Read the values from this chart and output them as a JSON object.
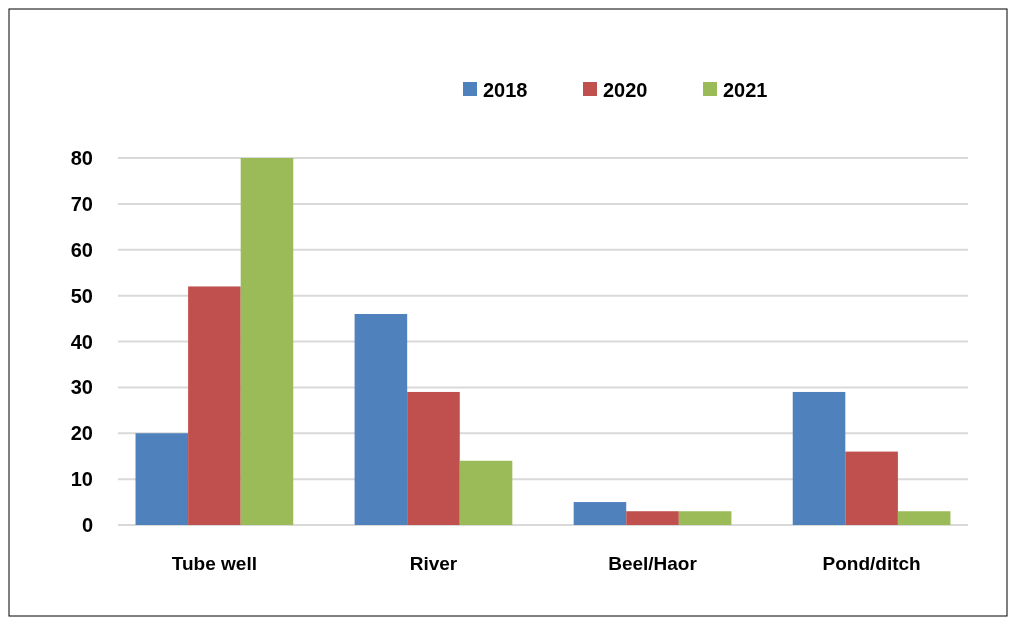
{
  "chart_data": {
    "type": "bar",
    "categories": [
      "Tube well",
      "River",
      "Beel/Haor",
      "Pond/ditch"
    ],
    "series": [
      {
        "name": "2018",
        "color": "#4f81bd",
        "values": [
          20,
          46,
          5,
          29
        ]
      },
      {
        "name": "2020",
        "color": "#c0504d",
        "values": [
          52,
          29,
          3,
          16
        ]
      },
      {
        "name": "2021",
        "color": "#9bbb59",
        "values": [
          80,
          14,
          3,
          3
        ]
      }
    ],
    "ylim": [
      0,
      80
    ],
    "yticks": [
      0,
      10,
      20,
      30,
      40,
      50,
      60,
      70,
      80
    ],
    "grid": "y",
    "legend": "top"
  }
}
